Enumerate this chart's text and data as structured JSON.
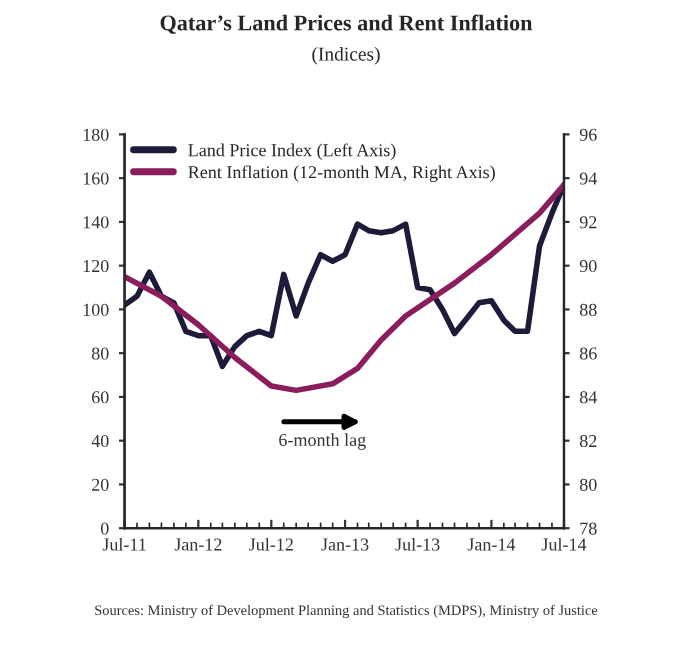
{
  "chart_data": {
    "type": "line",
    "title": "Qatar’s Land Prices and Rent Inflation",
    "subtitle": "(Indices)",
    "annotations": [
      "6-month lag",
      "Sources: Ministry of Development Planning and Statistics (MDPS), Ministry of Justice"
    ],
    "series": [
      {
        "name": "Land Price Index (Left Axis)",
        "color": "#1c1c3a",
        "x": [
          "2011-07",
          "2011-08",
          "2011-09",
          "2011-10",
          "2011-11",
          "2011-12",
          "2012-01",
          "2012-02",
          "2012-03",
          "2012-04",
          "2012-05",
          "2012-06",
          "2012-07",
          "2012-08",
          "2012-09",
          "2012-10",
          "2012-11",
          "2012-12",
          "2013-01",
          "2013-02",
          "2013-03",
          "2013-04",
          "2013-05",
          "2013-06",
          "2013-07",
          "2013-08",
          "2013-09",
          "2013-10",
          "2013-11",
          "2013-12",
          "2014-01",
          "2014-02",
          "2014-03",
          "2014-04",
          "2014-05",
          "2014-06",
          "2014-07"
        ],
        "values": [
          102,
          106,
          117,
          106,
          103,
          90,
          88,
          88,
          74,
          83,
          88,
          90,
          88,
          116,
          97,
          112,
          125,
          122,
          125,
          139,
          136,
          135,
          136,
          139,
          110,
          109,
          100,
          89,
          96,
          103,
          104,
          95,
          90,
          90,
          129,
          144,
          157
        ]
      },
      {
        "name": "Rent Inflation (12-month MA, Right Axis)",
        "color": "#8b1d5c",
        "axis": "y2",
        "x": [
          "2011-07",
          "2011-10",
          "2012-01",
          "2012-04",
          "2012-07",
          "2012-09",
          "2012-12",
          "2013-02",
          "2013-04",
          "2013-06",
          "2013-10",
          "2014-01",
          "2014-05",
          "2014-07"
        ],
        "values": [
          89.5,
          88.6,
          87.3,
          85.8,
          84.5,
          84.3,
          84.6,
          85.3,
          86.6,
          87.7,
          89.2,
          90.5,
          92.4,
          93.7
        ]
      }
    ],
    "xlim": [
      "2011-07",
      "2014-07"
    ],
    "xticks": [
      {
        "value": "2011-07",
        "label": "Jul-11"
      },
      {
        "value": "2012-01",
        "label": "Jan-12"
      },
      {
        "value": "2012-07",
        "label": "Jul-12"
      },
      {
        "value": "2013-01",
        "label": "Jan-13"
      },
      {
        "value": "2013-07",
        "label": "Jul-13"
      },
      {
        "value": "2014-01",
        "label": "Jan-14"
      },
      {
        "value": "2014-07",
        "label": "Jul-14"
      }
    ],
    "ylim": [
      0,
      180
    ],
    "yticks": [
      0,
      20,
      40,
      60,
      80,
      100,
      120,
      140,
      160,
      180
    ],
    "y2lim": [
      78,
      96
    ],
    "y2ticks": [
      78,
      80,
      82,
      84,
      86,
      88,
      90,
      92,
      94,
      96
    ],
    "legend": "top left",
    "grid": false,
    "marker": "none",
    "line_style": "solid"
  }
}
